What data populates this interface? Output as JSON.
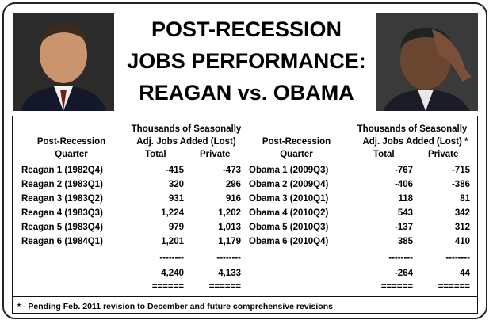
{
  "title_lines": [
    "POST-RECESSION",
    "JOBS PERFORMANCE:",
    "REAGAN vs. OBAMA"
  ],
  "photos": {
    "left": "reagan-portrait",
    "right": "obama-portrait"
  },
  "headers": {
    "group_left": [
      "Thousands of Seasonally",
      "Adj. Jobs Added (Lost)"
    ],
    "group_right": [
      "Thousands of Seasonally",
      "Adj. Jobs Added (Lost) *"
    ],
    "quarter_top": "Post-Recession",
    "quarter_bottom": "Quarter",
    "total": "Total",
    "private": "Private"
  },
  "reagan_rows": [
    {
      "q": "Reagan 1 (1982Q4)",
      "total": "-415",
      "private": "-473"
    },
    {
      "q": "Reagan 2 (1983Q1)",
      "total": "320",
      "private": "296"
    },
    {
      "q": "Reagan 3 (1983Q2)",
      "total": "931",
      "private": "916"
    },
    {
      "q": "Reagan 4 (1983Q3)",
      "total": "1,224",
      "private": "1,202"
    },
    {
      "q": "Reagan 5 (1983Q4)",
      "total": "979",
      "private": "1,013"
    },
    {
      "q": "Reagan 6 (1984Q1)",
      "total": "1,201",
      "private": "1,179"
    }
  ],
  "obama_rows": [
    {
      "q": "Obama 1 (2009Q3)",
      "total": "-767",
      "private": "-715"
    },
    {
      "q": "Obama 2 (2009Q4)",
      "total": "-406",
      "private": "-386"
    },
    {
      "q": "Obama 3 (2010Q1)",
      "total": "118",
      "private": "81"
    },
    {
      "q": "Obama 4 (2010Q2)",
      "total": "543",
      "private": "342"
    },
    {
      "q": "Obama 5 (2010Q3)",
      "total": "-137",
      "private": "312"
    },
    {
      "q": "Obama 6 (2010Q4)",
      "total": "385",
      "private": "410"
    }
  ],
  "dashes": "--------",
  "equals": "======",
  "reagan_totals": {
    "total": "4,240",
    "private": "4,133"
  },
  "obama_totals": {
    "total": "-264",
    "private": "44"
  },
  "footnote": "* - Pending Feb. 2011 revision to December and future comprehensive revisions"
}
